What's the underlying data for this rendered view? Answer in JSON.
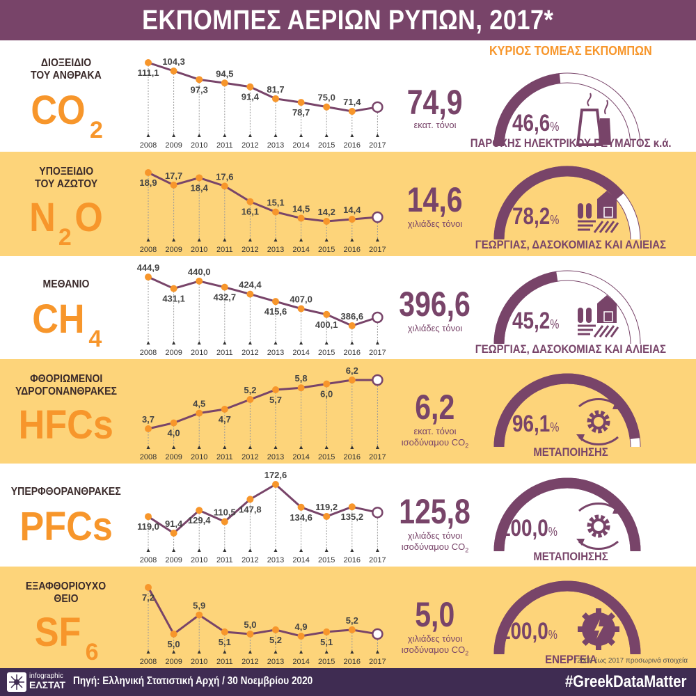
{
  "title": "ΕΚΠΟΜΠΕΣ ΑΕΡΙΩΝ ΡΥΠΩΝ, 2017*",
  "sector_header": "ΚΥΡΙΟΣ ΤΟΜΕΑΣ ΕΚΠΟΜΠΩΝ",
  "footnote": "*2008 έως 2017 προσωρινά στοιχεία",
  "footer": {
    "logo_small": "infographic",
    "logo_big": "ΕΛΣΤΑΤ",
    "source": "Πηγή: Ελληνική Στατιστική Αρχή  / 30 Νοεμβρίου 2020",
    "hashtag": "#GreekDataMatter"
  },
  "colors": {
    "purple": "#784469",
    "orange": "#f7962b",
    "yellow": "#fdd47a",
    "footer": "#3f2c52"
  },
  "gases": [
    {
      "name_lines": [
        "ΔΙΟΞΕΙΔΙΟ",
        "ΤΟΥ ΑΝΘΡΑΚΑ"
      ],
      "formula_main": "CO",
      "formula_sub": "2",
      "formula_tail": "",
      "value_2017": "74,9",
      "unit_lines": [
        "εκατ. τόνοι"
      ],
      "unit_co2": false,
      "share_label": "46,6",
      "share": 46.6,
      "sector": "ΠΑΡΟΧΗΣ ΗΛΕΚΤΡΙΚΟΥ ΡΕΥΜΑΤΟΣ κ.ά.",
      "icon": "power-plant-icon"
    },
    {
      "name_lines": [
        "ΥΠΟΞΕΙΔΙΟ",
        "ΤΟΥ ΑΖΩΤΟΥ"
      ],
      "formula_main": "N",
      "formula_sub": "2",
      "formula_tail": "O",
      "value_2017": "14,6",
      "unit_lines": [
        "χιλιάδες τόνοι"
      ],
      "unit_co2": false,
      "share_label": "78,2",
      "share": 78.2,
      "sector": "ΓΕΩΡΓΙΑΣ, ΔΑΣΟΚΟΜΙΑΣ ΚΑΙ ΑΛΙΕΙΑΣ",
      "icon": "farm-icon"
    },
    {
      "name_lines": [
        "ΜΕΘΑΝΙΟ"
      ],
      "formula_main": "CH",
      "formula_sub": "4",
      "formula_tail": "",
      "value_2017": "396,6",
      "unit_lines": [
        "χιλιάδες τόνοι"
      ],
      "unit_co2": false,
      "share_label": "45,2",
      "share": 45.2,
      "sector": "ΓΕΩΡΓΙΑΣ, ΔΑΣΟΚΟΜΙΑΣ ΚΑΙ ΑΛΙΕΙΑΣ",
      "icon": "farm-icon"
    },
    {
      "name_lines": [
        "ΦΘΟΡΙΩΜΕΝΟΙ",
        "ΥΔΡΟΓΟΝΑΝΘΡΑΚΕΣ"
      ],
      "formula_main": "HFCs",
      "formula_sub": "",
      "formula_tail": "",
      "value_2017": "6,2",
      "unit_lines": [
        "εκατ. τόνοι",
        "ισοδύναμου CO"
      ],
      "unit_co2": true,
      "share_label": "96,1",
      "share": 96.1,
      "sector": "ΜΕΤΑΠΟΙΗΣΗΣ",
      "icon": "gear-cycle-icon"
    },
    {
      "name_lines": [
        "ΥΠΕΡΦΘΟΡΑΝΘΡΑΚΕΣ"
      ],
      "formula_main": "PFCs",
      "formula_sub": "",
      "formula_tail": "",
      "value_2017": "125,8",
      "unit_lines": [
        "χιλιάδες τόνοι",
        "ισοδύναμου CO"
      ],
      "unit_co2": true,
      "share_label": "100,0",
      "share": 100.0,
      "sector": "ΜΕΤΑΠΟΙΗΣΗΣ",
      "icon": "gear-cycle-icon"
    },
    {
      "name_lines": [
        "ΕΞΑΦΘΟΡΙΟΥΧΟ",
        "ΘΕΙΟ"
      ],
      "formula_main": "SF",
      "formula_sub": "6",
      "formula_tail": "",
      "value_2017": "5,0",
      "unit_lines": [
        "χιλιάδες τόνοι",
        "ισοδύναμου CO"
      ],
      "unit_co2": true,
      "share_label": "100,0",
      "share": 100.0,
      "sector": "ΕΝΕΡΓΕΙΑ",
      "icon": "energy-gear-icon"
    }
  ],
  "chart_data": [
    {
      "type": "line",
      "title": "CO2",
      "x": [
        2008,
        2009,
        2010,
        2011,
        2012,
        2013,
        2014,
        2015,
        2016,
        2017
      ],
      "values": [
        111.1,
        104.3,
        97.3,
        94.5,
        91.4,
        81.7,
        78.7,
        75.0,
        71.4,
        74.9
      ],
      "labels": [
        "111,1",
        "104,3",
        "97,3",
        "94,5",
        "91,4",
        "81,7",
        "78,7",
        "75,0",
        "71,4",
        ""
      ],
      "label_pos": [
        "below",
        "above",
        "below",
        "above",
        "below",
        "above",
        "below",
        "above",
        "above",
        ""
      ]
    },
    {
      "type": "line",
      "title": "N2O",
      "x": [
        2008,
        2009,
        2010,
        2011,
        2012,
        2013,
        2014,
        2015,
        2016,
        2017
      ],
      "values": [
        18.9,
        17.7,
        18.4,
        17.6,
        16.1,
        15.1,
        14.5,
        14.2,
        14.4,
        14.6
      ],
      "labels": [
        "18,9",
        "17,7",
        "18,4",
        "17,6",
        "16,1",
        "15,1",
        "14,5",
        "14,2",
        "14,4",
        ""
      ],
      "label_pos": [
        "below",
        "above",
        "below",
        "above",
        "below",
        "above",
        "above",
        "above",
        "above",
        ""
      ]
    },
    {
      "type": "line",
      "title": "CH4",
      "x": [
        2008,
        2009,
        2010,
        2011,
        2012,
        2013,
        2014,
        2015,
        2016,
        2017
      ],
      "values": [
        444.9,
        431.1,
        440.0,
        432.7,
        424.4,
        415.6,
        407.0,
        400.1,
        386.6,
        396.6
      ],
      "labels": [
        "444,9",
        "431,1",
        "440,0",
        "432,7",
        "424,4",
        "415,6",
        "407,0",
        "400,1",
        "386,6",
        ""
      ],
      "label_pos": [
        "above",
        "below",
        "above",
        "below",
        "above",
        "below",
        "above",
        "below",
        "above",
        ""
      ]
    },
    {
      "type": "line",
      "title": "HFCs",
      "x": [
        2008,
        2009,
        2010,
        2011,
        2012,
        2013,
        2014,
        2015,
        2016,
        2017
      ],
      "values": [
        3.7,
        4.0,
        4.5,
        4.7,
        5.2,
        5.7,
        5.8,
        6.0,
        6.2,
        6.2
      ],
      "labels": [
        "3,7",
        "4,0",
        "4,5",
        "4,7",
        "5,2",
        "5,7",
        "5,8",
        "6,0",
        "6,2",
        ""
      ],
      "label_pos": [
        "above",
        "below",
        "above",
        "below",
        "above",
        "below",
        "above",
        "below",
        "above",
        ""
      ]
    },
    {
      "type": "line",
      "title": "PFCs",
      "x": [
        2008,
        2009,
        2010,
        2011,
        2012,
        2013,
        2014,
        2015,
        2016,
        2017
      ],
      "values": [
        119.0,
        91.4,
        129.4,
        110.5,
        147.8,
        172.6,
        134.6,
        119.2,
        135.2,
        125.8
      ],
      "labels": [
        "119,0",
        "91,4",
        "129,4",
        "110,5",
        "147,8",
        "172,6",
        "134,6",
        "119,2",
        "135,2",
        ""
      ],
      "label_pos": [
        "below",
        "above",
        "below",
        "above",
        "below",
        "above",
        "below",
        "above",
        "below",
        ""
      ]
    },
    {
      "type": "line",
      "title": "SF6",
      "x": [
        2008,
        2009,
        2010,
        2011,
        2012,
        2013,
        2014,
        2015,
        2016,
        2017
      ],
      "values": [
        7.2,
        5.0,
        5.9,
        5.1,
        5.0,
        5.2,
        4.9,
        5.1,
        5.2,
        5.0
      ],
      "labels": [
        "7,2",
        "5,0",
        "5,9",
        "5,1",
        "5,0",
        "5,2",
        "4,9",
        "5,1",
        "5,2",
        ""
      ],
      "label_pos": [
        "below",
        "below",
        "above",
        "below",
        "above",
        "below",
        "above",
        "below",
        "above",
        ""
      ]
    }
  ]
}
